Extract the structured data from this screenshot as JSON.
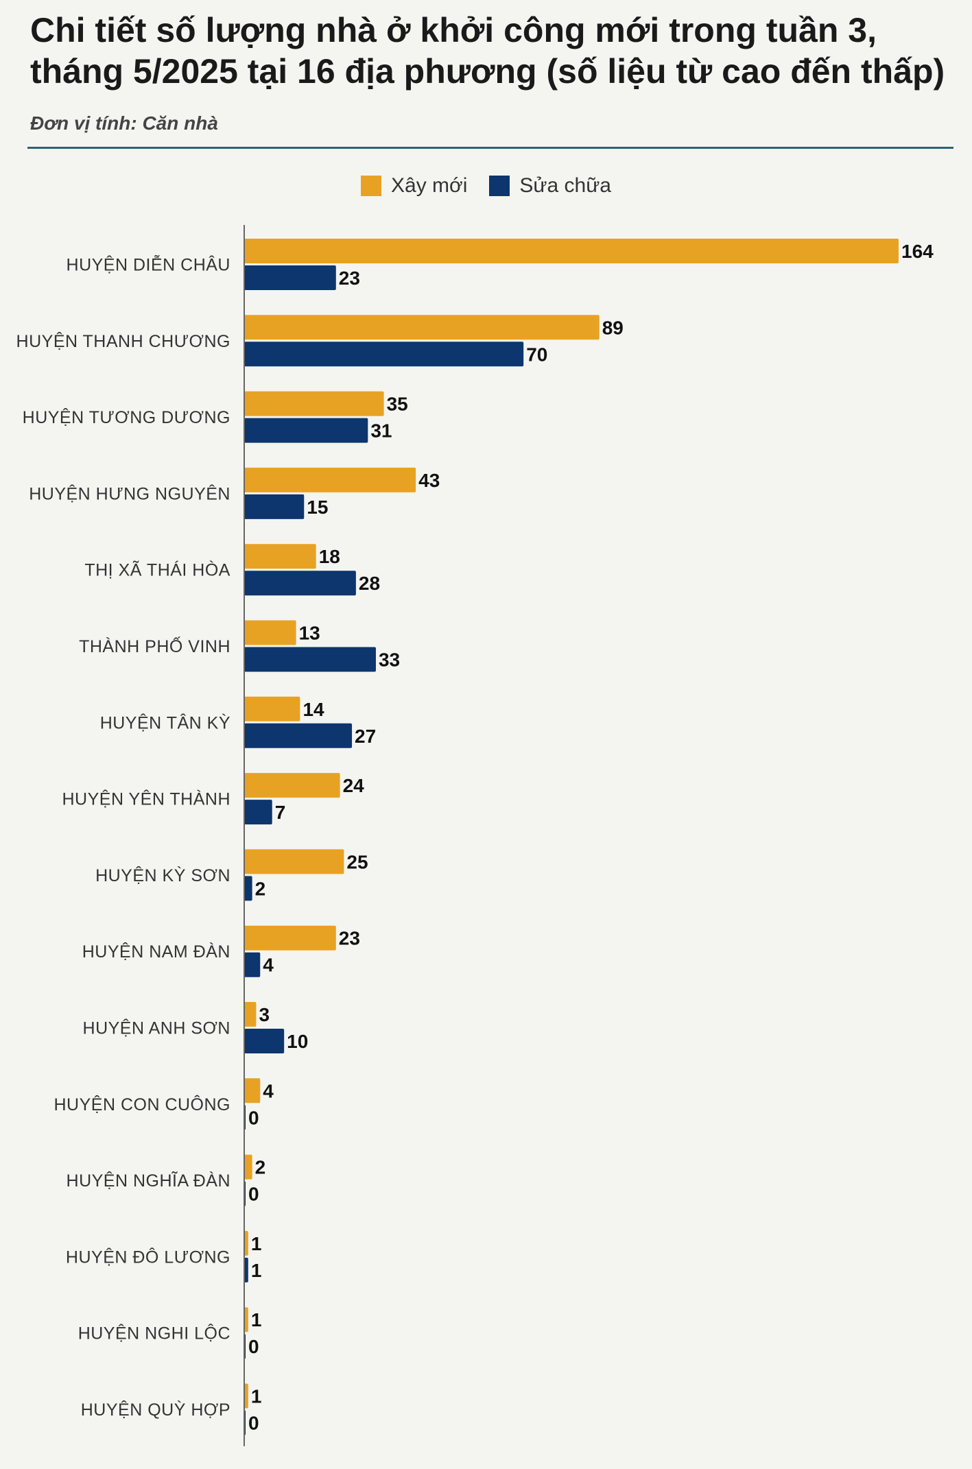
{
  "title": "Chi tiết số lượng nhà ở khởi công mới trong tuần 3, tháng 5/2025 tại 16 địa phương (số liệu từ cao đến thấp)",
  "unit_label": "Đơn vị tính: Căn nhà",
  "colors": {
    "accent_rule": "#2a6376",
    "background": "#f4f5f0"
  },
  "chart_data": {
    "type": "bar",
    "orientation": "horizontal",
    "title": "Chi tiết số lượng nhà ở khởi công mới trong tuần 3, tháng 5/2025 tại 16 địa phương (số liệu từ cao đến thấp)",
    "subtitle": "Đơn vị tính: Căn nhà",
    "legend_position": "top-center",
    "grid": false,
    "xlim": [
      0,
      164
    ],
    "categories": [
      "HUYỆN DIỄN CHÂU",
      "HUYỆN THANH CHƯƠNG",
      "HUYỆN TƯƠNG DƯƠNG",
      "HUYỆN HƯNG NGUYÊN",
      "THỊ XÃ THÁI HÒA",
      "THÀNH PHỐ VINH",
      "HUYỆN TÂN KỲ",
      "HUYỆN YÊN THÀNH",
      "HUYỆN KỲ SƠN",
      "HUYỆN NAM ĐÀN",
      "HUYỆN ANH SƠN",
      "HUYỆN CON CUÔNG",
      "HUYỆN NGHĨA ĐÀN",
      "HUYỆN ĐÔ LƯƠNG",
      "HUYỆN NGHI LỘC",
      "HUYỆN QUỲ HỢP"
    ],
    "series": [
      {
        "name": "Xây mới",
        "color": "#e8a223",
        "values": [
          164,
          89,
          35,
          43,
          18,
          13,
          14,
          24,
          25,
          23,
          3,
          4,
          2,
          1,
          1,
          1
        ]
      },
      {
        "name": "Sửa chữa",
        "color": "#0d356e",
        "values": [
          23,
          70,
          31,
          15,
          28,
          33,
          27,
          7,
          2,
          4,
          10,
          0,
          0,
          1,
          0,
          0
        ]
      }
    ]
  }
}
